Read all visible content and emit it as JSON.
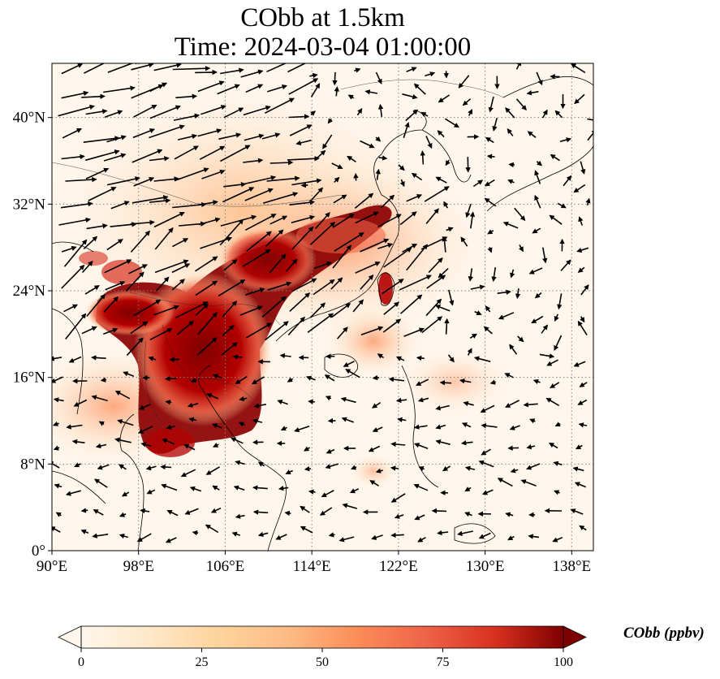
{
  "title": {
    "line1": "CObb at 1.5km",
    "line2": "Time: 2024-03-04 01:00:00"
  },
  "map": {
    "projection": "PlateCarree",
    "lon_range": [
      90,
      140
    ],
    "lat_range": [
      0,
      45
    ],
    "gridlines": "dotted",
    "lon_ticks": [
      {
        "value": 90,
        "label": "90°E"
      },
      {
        "value": 98,
        "label": "98°E"
      },
      {
        "value": 106,
        "label": "106°E"
      },
      {
        "value": 114,
        "label": "114°E"
      },
      {
        "value": 122,
        "label": "122°E"
      },
      {
        "value": 130,
        "label": "130°E"
      },
      {
        "value": 138,
        "label": "138°E"
      }
    ],
    "lat_ticks": [
      {
        "value": 0,
        "label": "0°"
      },
      {
        "value": 8,
        "label": "8°N"
      },
      {
        "value": 16,
        "label": "16°N"
      },
      {
        "value": 24,
        "label": "24°N"
      },
      {
        "value": 32,
        "label": "32°N"
      },
      {
        "value": 40,
        "label": "40°N"
      }
    ],
    "field": "CObb",
    "high_concentration_region": "Indochina peninsula and southern China, plume toward East China Sea",
    "wind_vectors": "black quiver arrows"
  },
  "colorbar": {
    "colormap": "OrRd",
    "min": 0,
    "max": 100,
    "extend": "both",
    "ticks": [
      {
        "value": 0,
        "label": "0"
      },
      {
        "value": 25,
        "label": "25"
      },
      {
        "value": 50,
        "label": "50"
      },
      {
        "value": 75,
        "label": "75"
      },
      {
        "value": 100,
        "label": "100"
      }
    ],
    "label": "CObb (ppbv)"
  },
  "colors": {
    "low": "#fff7ec",
    "mid": "#fc8d59",
    "high": "#7f0000",
    "gridline": "#808080"
  }
}
